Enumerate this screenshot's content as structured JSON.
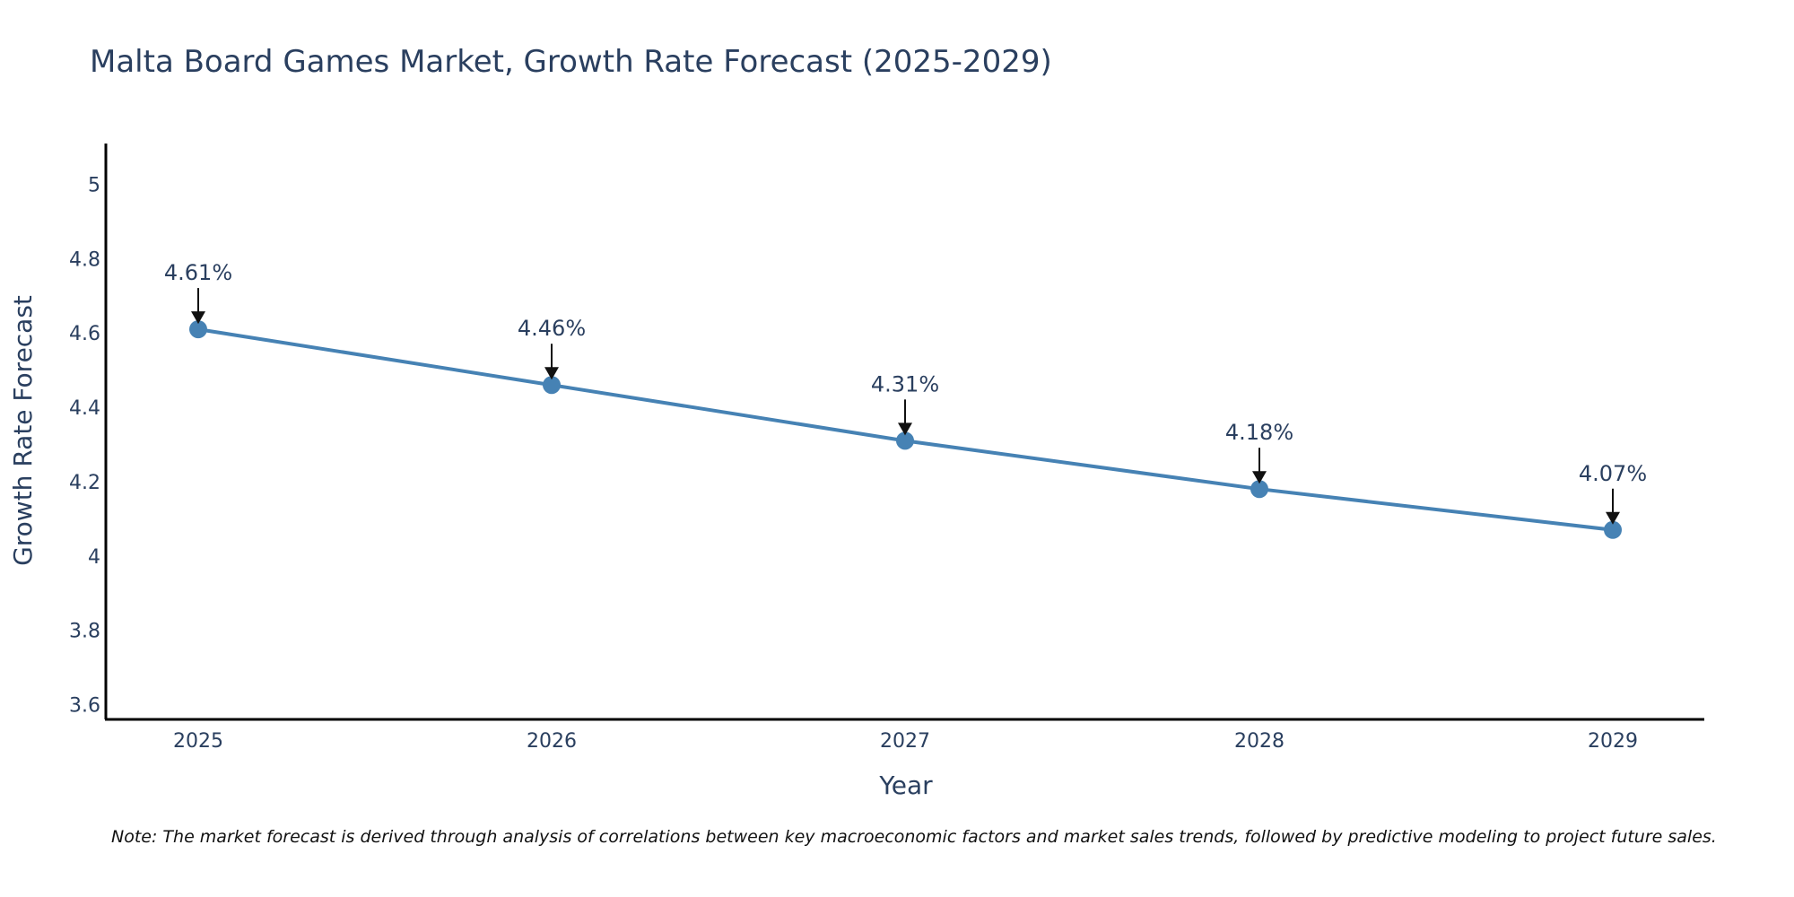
{
  "chart_data": {
    "type": "line",
    "title": "Malta Board Games Market, Growth Rate Forecast (2025-2029)",
    "xlabel": "Year",
    "ylabel": "Growth Rate Forecast",
    "categories": [
      "2025",
      "2026",
      "2027",
      "2028",
      "2029"
    ],
    "series": [
      {
        "name": "Growth Rate Forecast",
        "values": [
          4.61,
          4.46,
          4.31,
          4.18,
          4.07
        ],
        "labels": [
          "4.61%",
          "4.46%",
          "4.31%",
          "4.18%",
          "4.07%"
        ],
        "color": "#4682b4"
      }
    ],
    "ylim": [
      3.56,
      5.11
    ],
    "yticks": [
      3.6,
      3.8,
      4,
      4.2,
      4.4,
      4.6,
      4.8,
      5
    ],
    "ytick_labels": [
      "3.6",
      "3.8",
      "4",
      "4.2",
      "4.4",
      "4.6",
      "4.8",
      "5"
    ],
    "grid": false,
    "note": "Note: The market forecast is derived through analysis of correlations between key macroeconomic factors and market sales trends, followed by predictive modeling to project future sales."
  }
}
